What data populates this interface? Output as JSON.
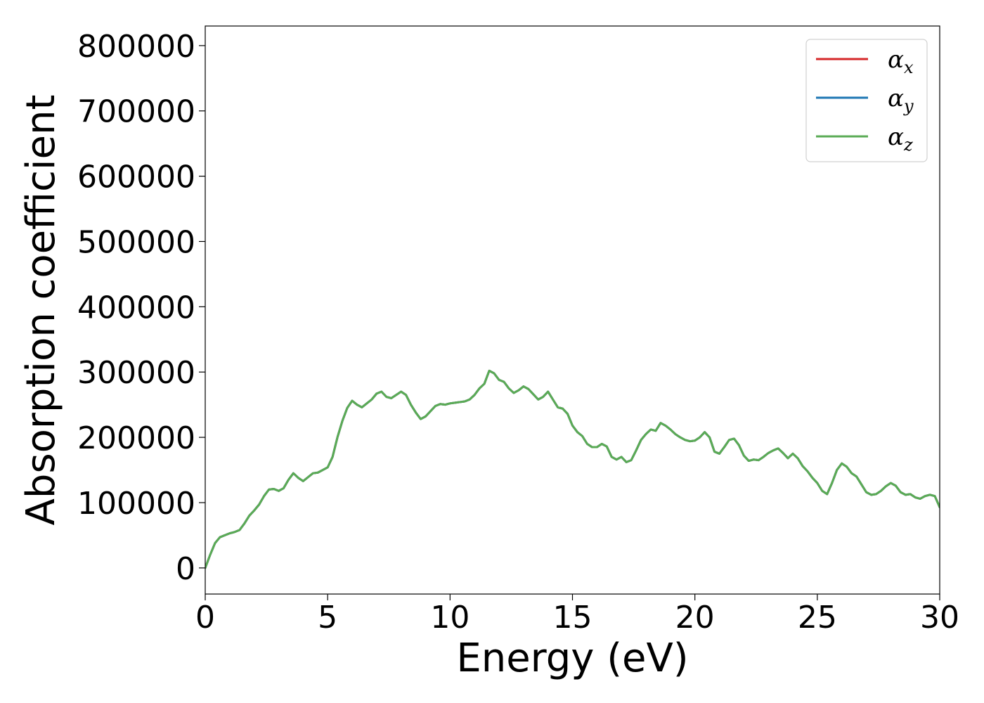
{
  "chart_data": {
    "type": "line",
    "xlabel": "Energy (eV)",
    "ylabel": "Absorption coefficient",
    "xlim": [
      0,
      30
    ],
    "ylim": [
      -40000,
      830000
    ],
    "xticks": [
      0,
      5,
      10,
      15,
      20,
      25,
      30
    ],
    "xtick_labels": [
      "0",
      "5",
      "10",
      "15",
      "20",
      "25",
      "30"
    ],
    "yticks": [
      0,
      100000,
      200000,
      300000,
      400000,
      500000,
      600000,
      700000,
      800000
    ],
    "ytick_labels": [
      "0",
      "100000",
      "200000",
      "300000",
      "400000",
      "500000",
      "600000",
      "700000",
      "800000"
    ],
    "grid": false,
    "legend_position": "top-right",
    "x": [
      0,
      0.2,
      0.4,
      0.6,
      0.8,
      1.0,
      1.2,
      1.4,
      1.6,
      1.8,
      2.0,
      2.2,
      2.4,
      2.6,
      2.8,
      3.0,
      3.2,
      3.4,
      3.6,
      3.8,
      4.0,
      4.2,
      4.4,
      4.6,
      4.8,
      5.0,
      5.2,
      5.4,
      5.6,
      5.8,
      6.0,
      6.2,
      6.4,
      6.6,
      6.8,
      7.0,
      7.2,
      7.4,
      7.6,
      7.8,
      8.0,
      8.2,
      8.4,
      8.6,
      8.8,
      9.0,
      9.2,
      9.4,
      9.6,
      9.8,
      10.0,
      10.2,
      10.4,
      10.6,
      10.8,
      11.0,
      11.2,
      11.4,
      11.6,
      11.8,
      12.0,
      12.2,
      12.4,
      12.6,
      12.8,
      13.0,
      13.2,
      13.4,
      13.6,
      13.8,
      14.0,
      14.2,
      14.4,
      14.6,
      14.8,
      15.0,
      15.2,
      15.4,
      15.6,
      15.8,
      16.0,
      16.2,
      16.4,
      16.6,
      16.8,
      17.0,
      17.2,
      17.4,
      17.6,
      17.8,
      18.0,
      18.2,
      18.4,
      18.6,
      18.8,
      19.0,
      19.2,
      19.4,
      19.6,
      19.8,
      20.0,
      20.2,
      20.4,
      20.6,
      20.8,
      21.0,
      21.2,
      21.4,
      21.6,
      21.8,
      22.0,
      22.2,
      22.4,
      22.6,
      22.8,
      23.0,
      23.2,
      23.4,
      23.6,
      23.8,
      24.0,
      24.2,
      24.4,
      24.6,
      24.8,
      25.0,
      25.2,
      25.4,
      25.6,
      25.8,
      26.0,
      26.2,
      26.4,
      26.6,
      26.8,
      27.0,
      27.2,
      27.4,
      27.6,
      27.8,
      28.0,
      28.2,
      28.4,
      28.6,
      28.8,
      29.0,
      29.2,
      29.4,
      29.6,
      29.8,
      30.0
    ],
    "series": [
      {
        "name": "α_x",
        "label_main": "α",
        "label_sub": "x",
        "color": "#d62728",
        "values": [
          0,
          20000,
          38000,
          47000,
          50000,
          53000,
          55000,
          58000,
          68000,
          80000,
          88000,
          97000,
          110000,
          120000,
          121000,
          118000,
          122000,
          135000,
          145000,
          138000,
          133000,
          139000,
          145000,
          146000,
          150000,
          154000,
          170000,
          200000,
          225000,
          245000,
          256000,
          250000,
          246000,
          252000,
          258000,
          267000,
          270000,
          262000,
          260000,
          265000,
          270000,
          265000,
          250000,
          238000,
          228000,
          232000,
          240000,
          248000,
          251000,
          250000,
          252000,
          253000,
          254000,
          255000,
          258000,
          265000,
          275000,
          282000,
          302000,
          298000,
          288000,
          285000,
          275000,
          268000,
          272000,
          278000,
          274000,
          266000,
          258000,
          262000,
          270000,
          258000,
          246000,
          244000,
          236000,
          218000,
          208000,
          202000,
          190000,
          185000,
          185000,
          190000,
          186000,
          170000,
          166000,
          170000,
          162000,
          165000,
          180000,
          196000,
          205000,
          212000,
          210000,
          222000,
          218000,
          212000,
          205000,
          200000,
          196000,
          194000,
          195000,
          200000,
          208000,
          200000,
          178000,
          175000,
          185000,
          196000,
          198000,
          188000,
          172000,
          164000,
          166000,
          165000,
          170000,
          176000,
          180000,
          183000,
          176000,
          168000,
          175000,
          168000,
          156000,
          148000,
          138000,
          130000,
          118000,
          113000,
          130000,
          150000,
          160000,
          155000,
          145000,
          140000,
          128000,
          116000,
          112000,
          113000,
          118000,
          125000,
          130000,
          126000,
          116000,
          112000,
          113000,
          108000,
          106000,
          110000,
          112000,
          110000,
          93000
        ]
      },
      {
        "name": "α_y",
        "label_main": "α",
        "label_sub": "y",
        "color": "#1f77b4",
        "values": [
          0,
          20000,
          38000,
          47000,
          50000,
          53000,
          55000,
          58000,
          68000,
          80000,
          88000,
          97000,
          110000,
          120000,
          121000,
          118000,
          122000,
          135000,
          145000,
          138000,
          133000,
          139000,
          145000,
          146000,
          150000,
          154000,
          170000,
          200000,
          225000,
          245000,
          256000,
          250000,
          246000,
          252000,
          258000,
          267000,
          270000,
          262000,
          260000,
          265000,
          270000,
          265000,
          250000,
          238000,
          228000,
          232000,
          240000,
          248000,
          251000,
          250000,
          252000,
          253000,
          254000,
          255000,
          258000,
          265000,
          275000,
          282000,
          302000,
          298000,
          288000,
          285000,
          275000,
          268000,
          272000,
          278000,
          274000,
          266000,
          258000,
          262000,
          270000,
          258000,
          246000,
          244000,
          236000,
          218000,
          208000,
          202000,
          190000,
          185000,
          185000,
          190000,
          186000,
          170000,
          166000,
          170000,
          162000,
          165000,
          180000,
          196000,
          205000,
          212000,
          210000,
          222000,
          218000,
          212000,
          205000,
          200000,
          196000,
          194000,
          195000,
          200000,
          208000,
          200000,
          178000,
          175000,
          185000,
          196000,
          198000,
          188000,
          172000,
          164000,
          166000,
          165000,
          170000,
          176000,
          180000,
          183000,
          176000,
          168000,
          175000,
          168000,
          156000,
          148000,
          138000,
          130000,
          118000,
          113000,
          130000,
          150000,
          160000,
          155000,
          145000,
          140000,
          128000,
          116000,
          112000,
          113000,
          118000,
          125000,
          130000,
          126000,
          116000,
          112000,
          113000,
          108000,
          106000,
          110000,
          112000,
          110000,
          93000
        ]
      },
      {
        "name": "α_z",
        "label_main": "α",
        "label_sub": "z",
        "color": "#5aab55",
        "values": [
          0,
          20000,
          38000,
          47000,
          50000,
          53000,
          55000,
          58000,
          68000,
          80000,
          88000,
          97000,
          110000,
          120000,
          121000,
          118000,
          122000,
          135000,
          145000,
          138000,
          133000,
          139000,
          145000,
          146000,
          150000,
          154000,
          170000,
          200000,
          225000,
          245000,
          256000,
          250000,
          246000,
          252000,
          258000,
          267000,
          270000,
          262000,
          260000,
          265000,
          270000,
          265000,
          250000,
          238000,
          228000,
          232000,
          240000,
          248000,
          251000,
          250000,
          252000,
          253000,
          254000,
          255000,
          258000,
          265000,
          275000,
          282000,
          302000,
          298000,
          288000,
          285000,
          275000,
          268000,
          272000,
          278000,
          274000,
          266000,
          258000,
          262000,
          270000,
          258000,
          246000,
          244000,
          236000,
          218000,
          208000,
          202000,
          190000,
          185000,
          185000,
          190000,
          186000,
          170000,
          166000,
          170000,
          162000,
          165000,
          180000,
          196000,
          205000,
          212000,
          210000,
          222000,
          218000,
          212000,
          205000,
          200000,
          196000,
          194000,
          195000,
          200000,
          208000,
          200000,
          178000,
          175000,
          185000,
          196000,
          198000,
          188000,
          172000,
          164000,
          166000,
          165000,
          170000,
          176000,
          180000,
          183000,
          176000,
          168000,
          175000,
          168000,
          156000,
          148000,
          138000,
          130000,
          118000,
          113000,
          130000,
          150000,
          160000,
          155000,
          145000,
          140000,
          128000,
          116000,
          112000,
          113000,
          118000,
          125000,
          130000,
          126000,
          116000,
          112000,
          113000,
          108000,
          106000,
          110000,
          112000,
          110000,
          93000
        ]
      }
    ]
  }
}
